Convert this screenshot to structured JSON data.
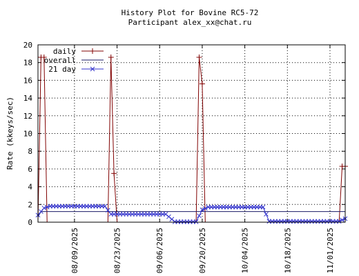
{
  "chart_data": {
    "type": "line",
    "title": "History Plot for Bovine RC5-72",
    "subtitle": "Participant alex_xx@chat.ru",
    "xlabel": "",
    "ylabel": "Rate (kkeys/sec)",
    "ylim": [
      0,
      20
    ],
    "yticks": [
      0,
      2,
      4,
      6,
      8,
      10,
      12,
      14,
      16,
      18,
      20
    ],
    "xlim": [
      "2025-07-28",
      "2025-11-06"
    ],
    "xticks": [
      "08/09/2025",
      "08/23/2025",
      "09/06/2025",
      "09/20/2025",
      "10/04/2025",
      "10/18/2025",
      "11/01/2025"
    ],
    "grid": true,
    "legend": "top-left",
    "colors": {
      "daily": "#800000",
      "overall": "#1a1a66",
      "21 day": "#3333cc"
    },
    "series": [
      {
        "name": "daily",
        "marker": "plus",
        "x": [
          "2025-07-28",
          "2025-07-29",
          "2025-07-30",
          "2025-07-31",
          "2025-08-20",
          "2025-08-21",
          "2025-08-22",
          "2025-08-23",
          "2025-09-18",
          "2025-09-19",
          "2025-09-20",
          "2025-09-21",
          "2025-11-04",
          "2025-11-05",
          "2025-11-06"
        ],
        "values": [
          0.0,
          18.6,
          18.6,
          0.0,
          0.0,
          18.6,
          5.5,
          0.0,
          0.0,
          18.6,
          15.6,
          0.0,
          0.0,
          6.3,
          6.3
        ]
      },
      {
        "name": "overall",
        "marker": "none",
        "x": [
          "2025-07-28",
          "2025-07-29",
          "2025-11-06"
        ],
        "values": [
          0.6,
          1.2,
          1.2
        ]
      },
      {
        "name": "21 day",
        "marker": "x",
        "x": [
          "2025-07-28",
          "2025-07-30",
          "2025-08-01",
          "2025-08-19",
          "2025-08-21",
          "2025-09-08",
          "2025-09-11",
          "2025-09-18",
          "2025-09-20",
          "2025-09-22",
          "2025-10-10",
          "2025-10-12",
          "2025-11-04",
          "2025-11-06"
        ],
        "values": [
          0.8,
          1.6,
          1.8,
          1.8,
          0.9,
          0.9,
          0.05,
          0.05,
          1.4,
          1.7,
          1.7,
          0.1,
          0.1,
          0.4
        ]
      }
    ]
  }
}
